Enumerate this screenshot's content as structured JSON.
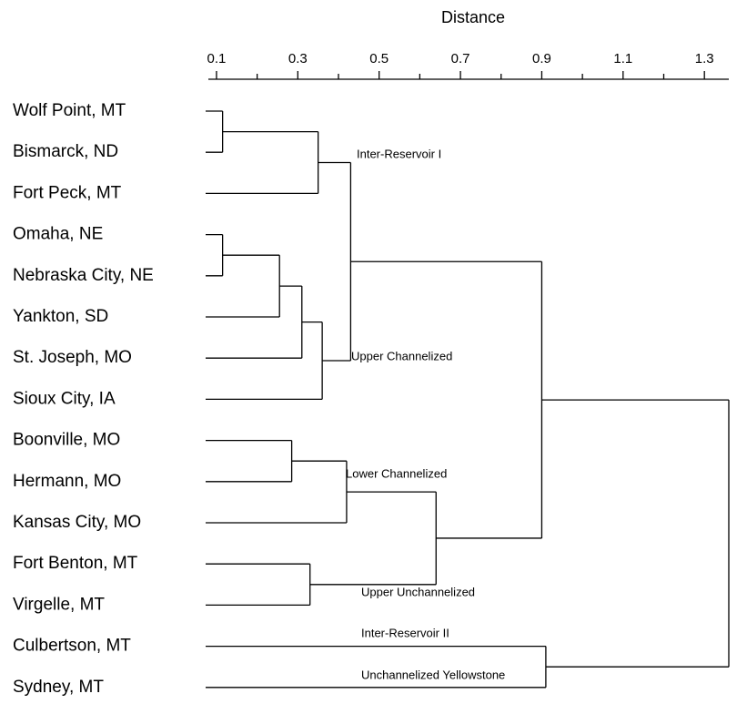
{
  "chart_data": {
    "type": "dendrogram",
    "title": "Distance",
    "xlim": [
      0.08,
      1.36
    ],
    "xticks": [
      0.1,
      0.3,
      0.5,
      0.7,
      0.9,
      1.1,
      1.3
    ],
    "xticks_minor": [
      0.2,
      0.4,
      0.6,
      0.8,
      1.0,
      1.2
    ],
    "color": "#000000",
    "annotations": [
      "Inter-Reservoir I",
      "Upper Channelized",
      "Lower Channelized",
      "Upper Unchannelized",
      "Inter-Reservoir II",
      "Unchannelized Yellowstone"
    ],
    "tree": {
      "height": 1.36,
      "children": [
        {
          "height": 0.9,
          "children": [
            {
              "height": 0.43,
              "children": [
                {
                  "height": 0.35,
                  "children": [
                    {
                      "height": 0.115,
                      "children": [
                        {
                          "label": "Wolf Point, MT"
                        },
                        {
                          "label": "Bismarck, ND"
                        }
                      ]
                    },
                    {
                      "label": "Fort Peck, MT"
                    }
                  ]
                },
                {
                  "height": 0.36,
                  "children": [
                    {
                      "height": 0.31,
                      "children": [
                        {
                          "height": 0.255,
                          "children": [
                            {
                              "height": 0.115,
                              "children": [
                                {
                                  "label": "Omaha, NE"
                                },
                                {
                                  "label": "Nebraska City, NE"
                                }
                              ]
                            },
                            {
                              "label": "Yankton, SD"
                            }
                          ]
                        },
                        {
                          "label": "St. Joseph, MO"
                        }
                      ]
                    },
                    {
                      "label": "Sioux City, IA"
                    }
                  ]
                }
              ]
            },
            {
              "height": 0.64,
              "children": [
                {
                  "height": 0.42,
                  "children": [
                    {
                      "height": 0.285,
                      "children": [
                        {
                          "label": "Boonville, MO"
                        },
                        {
                          "label": "Hermann, MO"
                        }
                      ]
                    },
                    {
                      "label": "Kansas City, MO"
                    }
                  ]
                },
                {
                  "height": 0.33,
                  "children": [
                    {
                      "label": "Fort Benton, MT"
                    },
                    {
                      "label": "Virgelle, MT"
                    }
                  ]
                }
              ]
            }
          ]
        },
        {
          "height": 0.91,
          "children": [
            {
              "label": "Culbertson, MT"
            },
            {
              "label": "Sydney, MT"
            }
          ]
        }
      ]
    }
  }
}
